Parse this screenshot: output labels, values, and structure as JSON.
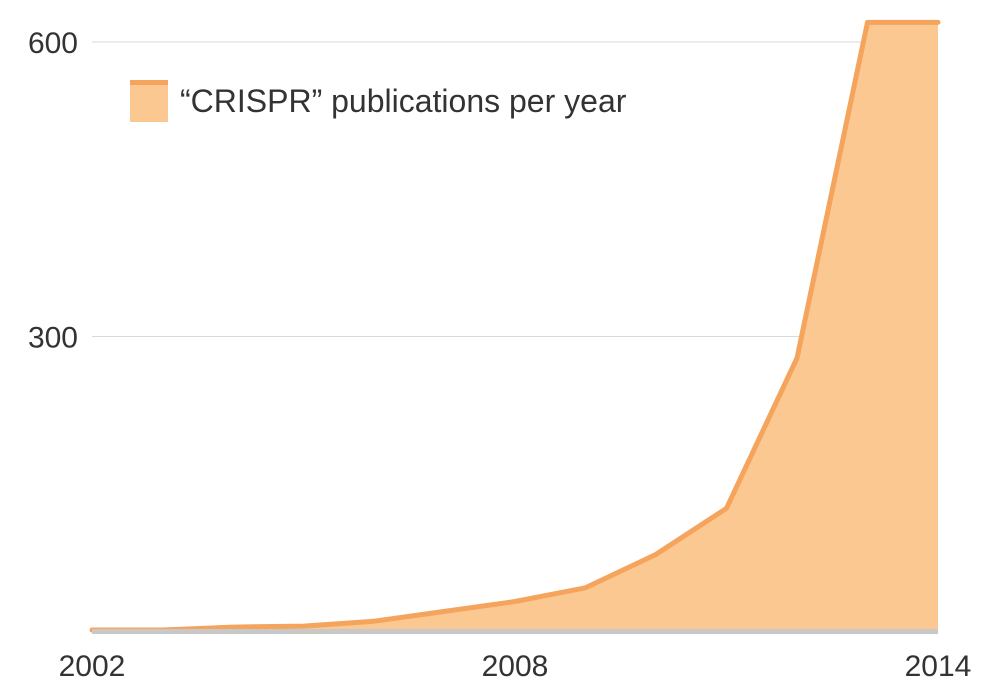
{
  "chart_data": {
    "type": "area",
    "title": "",
    "xlabel": "",
    "ylabel": "",
    "x": [
      2002,
      2003,
      2004,
      2005,
      2006,
      2007,
      2008,
      2009,
      2010,
      2011,
      2012,
      2013,
      2014
    ],
    "series": [
      {
        "name": "“CRISPR” publications per year",
        "values": [
          1,
          1,
          4,
          5,
          10,
          20,
          30,
          44,
          78,
          125,
          278,
          620,
          620
        ]
      }
    ],
    "xlim": [
      2002,
      2014
    ],
    "ylim": [
      0,
      615
    ],
    "x_ticks": [
      "2002",
      "2008",
      "2014"
    ],
    "y_ticks": [
      "300",
      "600"
    ],
    "grid": true,
    "legend_position": "top-left",
    "colors": {
      "line": "#f4a45c",
      "fill": "#fbc891",
      "grid": "#d9d9d9",
      "baseline": "#c8c8c8",
      "text": "#333333"
    }
  }
}
